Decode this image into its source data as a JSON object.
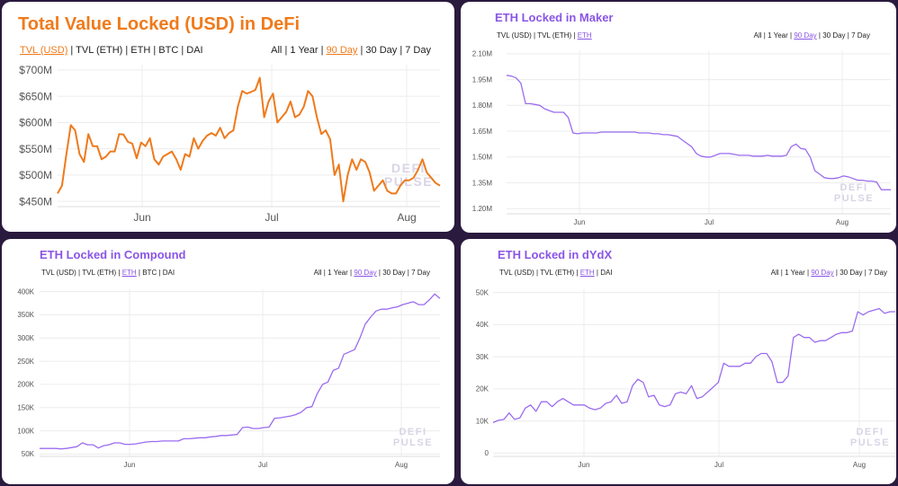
{
  "panels": [
    {
      "title": "Total Value Locked (USD) in DeFi",
      "title_color": "#f07a1a",
      "accent": "#f07a1a",
      "line_color": "#ee7a1c",
      "left_options": [
        "TVL (USD)",
        "TVL (ETH)",
        "ETH",
        "BTC",
        "DAI"
      ],
      "left_active": 0,
      "right_options": [
        "All",
        "1 Year",
        "90 Day",
        "30 Day",
        "7 Day"
      ],
      "right_active": 2,
      "watermark": [
        "DEFI",
        "PULSE"
      ]
    },
    {
      "title": "ETH Locked in Maker",
      "title_color": "#8a55e6",
      "accent": "#8a55e6",
      "line_color": "#9b6cf0",
      "left_options": [
        "TVL (USD)",
        "TVL (ETH)",
        "ETH"
      ],
      "left_active": 2,
      "right_options": [
        "All",
        "1 Year",
        "90 Day",
        "30 Day",
        "7 Day"
      ],
      "right_active": 2,
      "watermark": [
        "DEFI",
        "PULSE"
      ]
    },
    {
      "title": "ETH Locked in Compound",
      "title_color": "#8a55e6",
      "accent": "#8a55e6",
      "line_color": "#9b6cf0",
      "left_options": [
        "TVL (USD)",
        "TVL (ETH)",
        "ETH",
        "BTC",
        "DAI"
      ],
      "left_active": 2,
      "right_options": [
        "All",
        "1 Year",
        "90 Day",
        "30 Day",
        "7 Day"
      ],
      "right_active": 2,
      "watermark": [
        "DEFI",
        "PULSE"
      ]
    },
    {
      "title": "ETH Locked in dYdX",
      "title_color": "#8a55e6",
      "accent": "#8a55e6",
      "line_color": "#9b6cf0",
      "left_options": [
        "TVL (USD)",
        "TVL (ETH)",
        "ETH",
        "DAI"
      ],
      "left_active": 2,
      "right_options": [
        "All",
        "1 Year",
        "90 Day",
        "30 Day",
        "7 Day"
      ],
      "right_active": 2,
      "watermark": [
        "DEFI",
        "PULSE"
      ]
    }
  ],
  "chart_data": [
    {
      "type": "line",
      "title": "Total Value Locked (USD) in DeFi",
      "x_ticks": [
        "Jun",
        "Jul",
        "Aug"
      ],
      "y_ticks": [
        "$450M",
        "$500M",
        "$550M",
        "$600M",
        "$650M",
        "$700M"
      ],
      "ylim": [
        440,
        710
      ],
      "grid": true,
      "values": [
        465,
        480,
        540,
        595,
        585,
        540,
        525,
        578,
        555,
        555,
        530,
        535,
        545,
        545,
        578,
        577,
        563,
        560,
        532,
        562,
        555,
        570,
        530,
        520,
        535,
        540,
        545,
        530,
        510,
        540,
        535,
        570,
        550,
        565,
        575,
        580,
        575,
        590,
        570,
        580,
        585,
        630,
        660,
        655,
        658,
        662,
        685,
        610,
        640,
        655,
        600,
        610,
        620,
        640,
        610,
        615,
        630,
        660,
        650,
        610,
        578,
        585,
        568,
        500,
        520,
        450,
        500,
        530,
        510,
        530,
        525,
        505,
        470,
        480,
        490,
        470,
        465,
        465,
        480,
        490,
        490,
        495,
        510,
        530,
        505,
        495,
        485,
        480
      ],
      "watermark": "DEFI PULSE"
    },
    {
      "type": "line",
      "title": "ETH Locked in Maker",
      "x_ticks": [
        "Jun",
        "Jul",
        "Aug"
      ],
      "y_ticks": [
        "1.20M",
        "1.35M",
        "1.50M",
        "1.65M",
        "1.80M",
        "1.95M",
        "2.10M"
      ],
      "ylim": [
        1.17,
        2.12
      ],
      "grid": true,
      "values": [
        1.975,
        1.97,
        1.96,
        1.93,
        1.81,
        1.81,
        1.805,
        1.8,
        1.78,
        1.77,
        1.76,
        1.76,
        1.76,
        1.73,
        1.64,
        1.635,
        1.64,
        1.64,
        1.64,
        1.64,
        1.645,
        1.645,
        1.645,
        1.645,
        1.645,
        1.645,
        1.645,
        1.645,
        1.64,
        1.64,
        1.64,
        1.635,
        1.635,
        1.63,
        1.63,
        1.625,
        1.62,
        1.6,
        1.58,
        1.56,
        1.52,
        1.505,
        1.5,
        1.5,
        1.51,
        1.52,
        1.52,
        1.52,
        1.515,
        1.51,
        1.51,
        1.51,
        1.505,
        1.505,
        1.505,
        1.51,
        1.505,
        1.505,
        1.505,
        1.51,
        1.56,
        1.575,
        1.55,
        1.545,
        1.5,
        1.42,
        1.4,
        1.38,
        1.375,
        1.375,
        1.38,
        1.39,
        1.385,
        1.375,
        1.365,
        1.365,
        1.36,
        1.36,
        1.355,
        1.31,
        1.31,
        1.31
      ],
      "watermark": "DEFI PULSE"
    },
    {
      "type": "line",
      "title": "ETH Locked in Compound",
      "x_ticks": [
        "Jun",
        "Jul",
        "Aug"
      ],
      "y_ticks": [
        "50K",
        "100K",
        "150K",
        "200K",
        "250K",
        "300K",
        "350K",
        "400K"
      ],
      "ylim": [
        45,
        405
      ],
      "grid": true,
      "values": [
        62,
        62,
        62,
        62,
        61,
        62,
        64,
        66,
        74,
        70,
        70,
        63,
        68,
        70,
        74,
        74,
        71,
        71,
        72,
        74,
        76,
        77,
        77,
        78,
        78,
        78,
        78,
        83,
        83,
        84,
        85,
        85,
        87,
        88,
        90,
        90,
        91,
        92,
        107,
        108,
        105,
        105,
        107,
        108,
        127,
        128,
        130,
        132,
        135,
        140,
        150,
        152,
        180,
        200,
        205,
        230,
        235,
        265,
        270,
        275,
        300,
        330,
        345,
        358,
        362,
        362,
        365,
        367,
        372,
        375,
        378,
        372,
        372,
        382,
        395,
        385
      ],
      "watermark": "DEFI PULSE"
    },
    {
      "type": "line",
      "title": "ETH Locked in dYdX",
      "x_ticks": [
        "Jun",
        "Jul",
        "Aug"
      ],
      "y_ticks": [
        "0",
        "10K",
        "20K",
        "30K",
        "40K",
        "50K"
      ],
      "ylim": [
        -1,
        51
      ],
      "grid": true,
      "values": [
        9.5,
        10.2,
        10.5,
        12.5,
        10.5,
        11,
        14,
        15,
        13,
        16,
        16,
        14.5,
        16,
        17,
        16,
        15,
        15,
        15,
        14,
        13.5,
        14,
        15.5,
        16,
        18,
        15.5,
        16,
        21,
        23,
        22,
        17.5,
        18,
        15,
        14.5,
        15,
        18.5,
        19,
        18.5,
        21,
        17,
        17.5,
        19,
        20.5,
        22,
        28,
        27,
        27,
        27,
        28,
        28,
        30,
        31,
        31,
        28.5,
        22,
        22,
        24,
        36,
        37,
        36,
        36,
        34.5,
        35,
        35,
        36,
        37,
        37.5,
        37.5,
        38,
        44,
        43,
        44,
        44.5,
        45,
        43.5,
        44,
        44
      ],
      "watermark": "DEFI PULSE"
    }
  ]
}
